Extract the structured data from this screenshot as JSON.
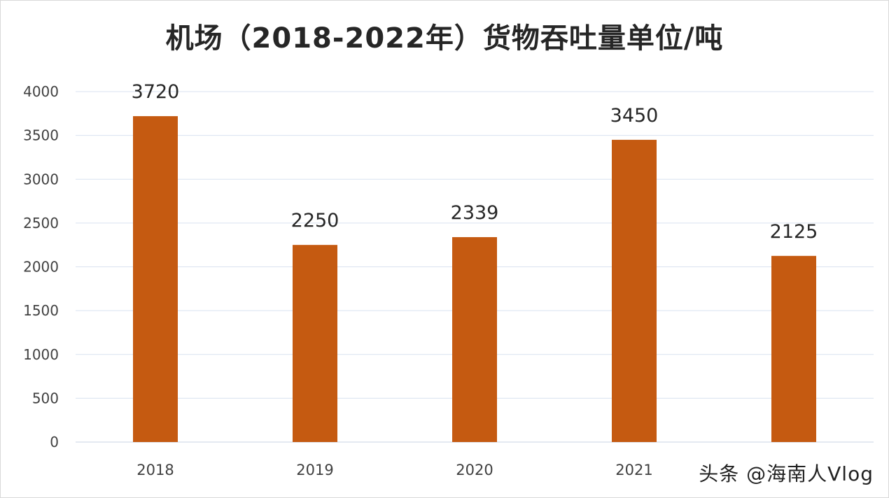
{
  "chart_data": {
    "type": "bar",
    "title": "机场（2018-2022年）货物吞吐量单位/吨",
    "categories": [
      "2018",
      "2019",
      "2020",
      "2021",
      ""
    ],
    "values": [
      3720,
      2250,
      2339,
      3450,
      2125
    ],
    "data_labels": [
      "3720",
      "2250",
      "2339",
      "3450",
      "2125"
    ],
    "ylim": [
      0,
      4000
    ],
    "yticks": [
      0,
      500,
      1000,
      1500,
      2000,
      2500,
      3000,
      3500,
      4000
    ],
    "ytick_labels": [
      "0",
      "500",
      "1000",
      "1500",
      "2000",
      "2500",
      "3000",
      "3500",
      "4000"
    ],
    "grid": true,
    "legend": "none",
    "bar_color": "#c55a11",
    "grid_color": "#d9e2f0",
    "text_color": "#404040"
  },
  "watermark": "头条 @海南人Vlog"
}
